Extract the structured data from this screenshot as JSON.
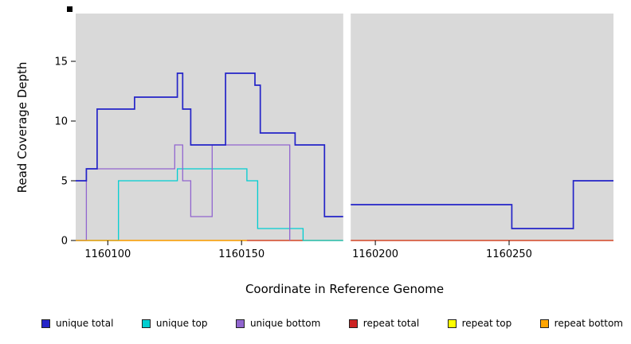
{
  "figure": {
    "background": "#ffffff",
    "panel_background": "#d9d9d9"
  },
  "chart_data": {
    "type": "line",
    "subtype": "step",
    "title": "",
    "xlabel": "Coordinate in Reference Genome",
    "ylabel": "Read Coverage Depth",
    "xlim": [
      1160088,
      1160289
    ],
    "ylim": [
      0,
      19
    ],
    "x_ticks": [
      1160100,
      1160150,
      1160200,
      1160250
    ],
    "y_ticks": [
      0,
      5,
      10,
      15
    ],
    "grid": false,
    "legend_position": "bottom",
    "gap_x": [
      1160188,
      1160190.8
    ],
    "z_order": [
      "repeat top",
      "repeat total",
      "unique top",
      "unique bottom",
      "repeat bottom",
      "unique total"
    ],
    "series": [
      {
        "name": "unique total",
        "color": "#2424C8",
        "points": [
          [
            1160088,
            5
          ],
          [
            1160092,
            6
          ],
          [
            1160096,
            11
          ],
          [
            1160110,
            12
          ],
          [
            1160126,
            14
          ],
          [
            1160128,
            11
          ],
          [
            1160131,
            8
          ],
          [
            1160144,
            14
          ],
          [
            1160155,
            13
          ],
          [
            1160157,
            9
          ],
          [
            1160170,
            8
          ],
          [
            1160181,
            2
          ],
          [
            1160190,
            3
          ],
          [
            1160251,
            1
          ],
          [
            1160274,
            5
          ],
          [
            1160289,
            5
          ]
        ]
      },
      {
        "name": "unique top",
        "color": "#00CED1",
        "points": [
          [
            1160088,
            0
          ],
          [
            1160104,
            5
          ],
          [
            1160126,
            6
          ],
          [
            1160152,
            5
          ],
          [
            1160156,
            1
          ],
          [
            1160173,
            0
          ],
          [
            1160190,
            0
          ]
        ]
      },
      {
        "name": "unique bottom",
        "color": "#9165CF",
        "points": [
          [
            1160088,
            0
          ],
          [
            1160092,
            6
          ],
          [
            1160125,
            8
          ],
          [
            1160128,
            5
          ],
          [
            1160131,
            2
          ],
          [
            1160139,
            8
          ],
          [
            1160168,
            0
          ]
        ]
      },
      {
        "name": "repeat total",
        "color": "#CC2222",
        "points": [
          [
            1160088,
            0
          ],
          [
            1160289,
            0
          ]
        ]
      },
      {
        "name": "repeat top",
        "color": "#FFFF00",
        "points": [
          [
            1160088,
            0
          ],
          [
            1160289,
            0
          ]
        ]
      },
      {
        "name": "repeat bottom",
        "color": "#FFA500",
        "points": [
          [
            1160088,
            0
          ],
          [
            1160152,
            0
          ]
        ]
      }
    ]
  },
  "legend": {
    "items": [
      {
        "label": "unique total",
        "color": "#2424C8"
      },
      {
        "label": "unique top",
        "color": "#00CED1"
      },
      {
        "label": "unique bottom",
        "color": "#9165CF"
      },
      {
        "label": "repeat total",
        "color": "#CC2222"
      },
      {
        "label": "repeat top",
        "color": "#FFFF00"
      },
      {
        "label": "repeat bottom",
        "color": "#FFA500"
      }
    ]
  }
}
